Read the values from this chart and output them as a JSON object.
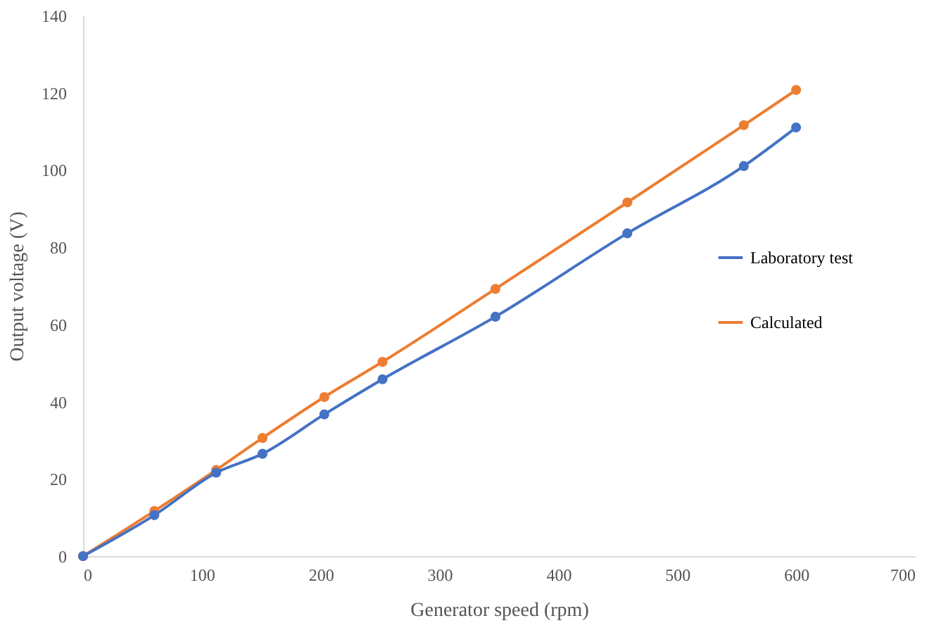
{
  "chart_data": {
    "type": "line",
    "xlabel": "Generator speed (rpm)",
    "ylabel": "Output voltage (V)",
    "xlim": [
      0,
      700
    ],
    "xticks": [
      0,
      100,
      200,
      300,
      400,
      500,
      600,
      700
    ],
    "ylim": [
      0,
      140
    ],
    "yticks": [
      0,
      20,
      40,
      60,
      80,
      100,
      120,
      140
    ],
    "grid": false,
    "legend": "right",
    "marker": "circle",
    "line_style": "solid",
    "series": [
      {
        "name": "Laboratory test",
        "color": "#4472c4",
        "x": [
          0,
          60,
          112,
          151,
          203,
          252,
          347,
          458,
          556,
          600
        ],
        "values": [
          0,
          10.6,
          21.6,
          26.5,
          36.7,
          45.8,
          62,
          83.6,
          101,
          111
        ]
      },
      {
        "name": "Calculated",
        "color": "#ed7d31",
        "x": [
          0,
          60,
          112,
          151,
          203,
          252,
          347,
          458,
          556,
          600
        ],
        "values": [
          0,
          11.7,
          22.3,
          30.6,
          41.2,
          50.3,
          69.2,
          91.6,
          111.6,
          120.7
        ]
      }
    ]
  }
}
